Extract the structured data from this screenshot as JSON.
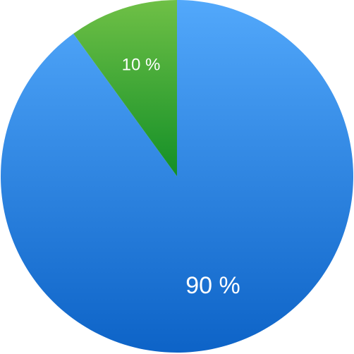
{
  "chart_data": {
    "type": "pie",
    "title": "",
    "legend": "none",
    "slices": [
      {
        "value": 90,
        "label": "90 %",
        "color_top": "#52a8fb",
        "color_bottom": "#0d63c7"
      },
      {
        "value": 10,
        "label": "10 %",
        "color_top": "#6fc046",
        "color_bottom": "#138f27"
      }
    ]
  }
}
